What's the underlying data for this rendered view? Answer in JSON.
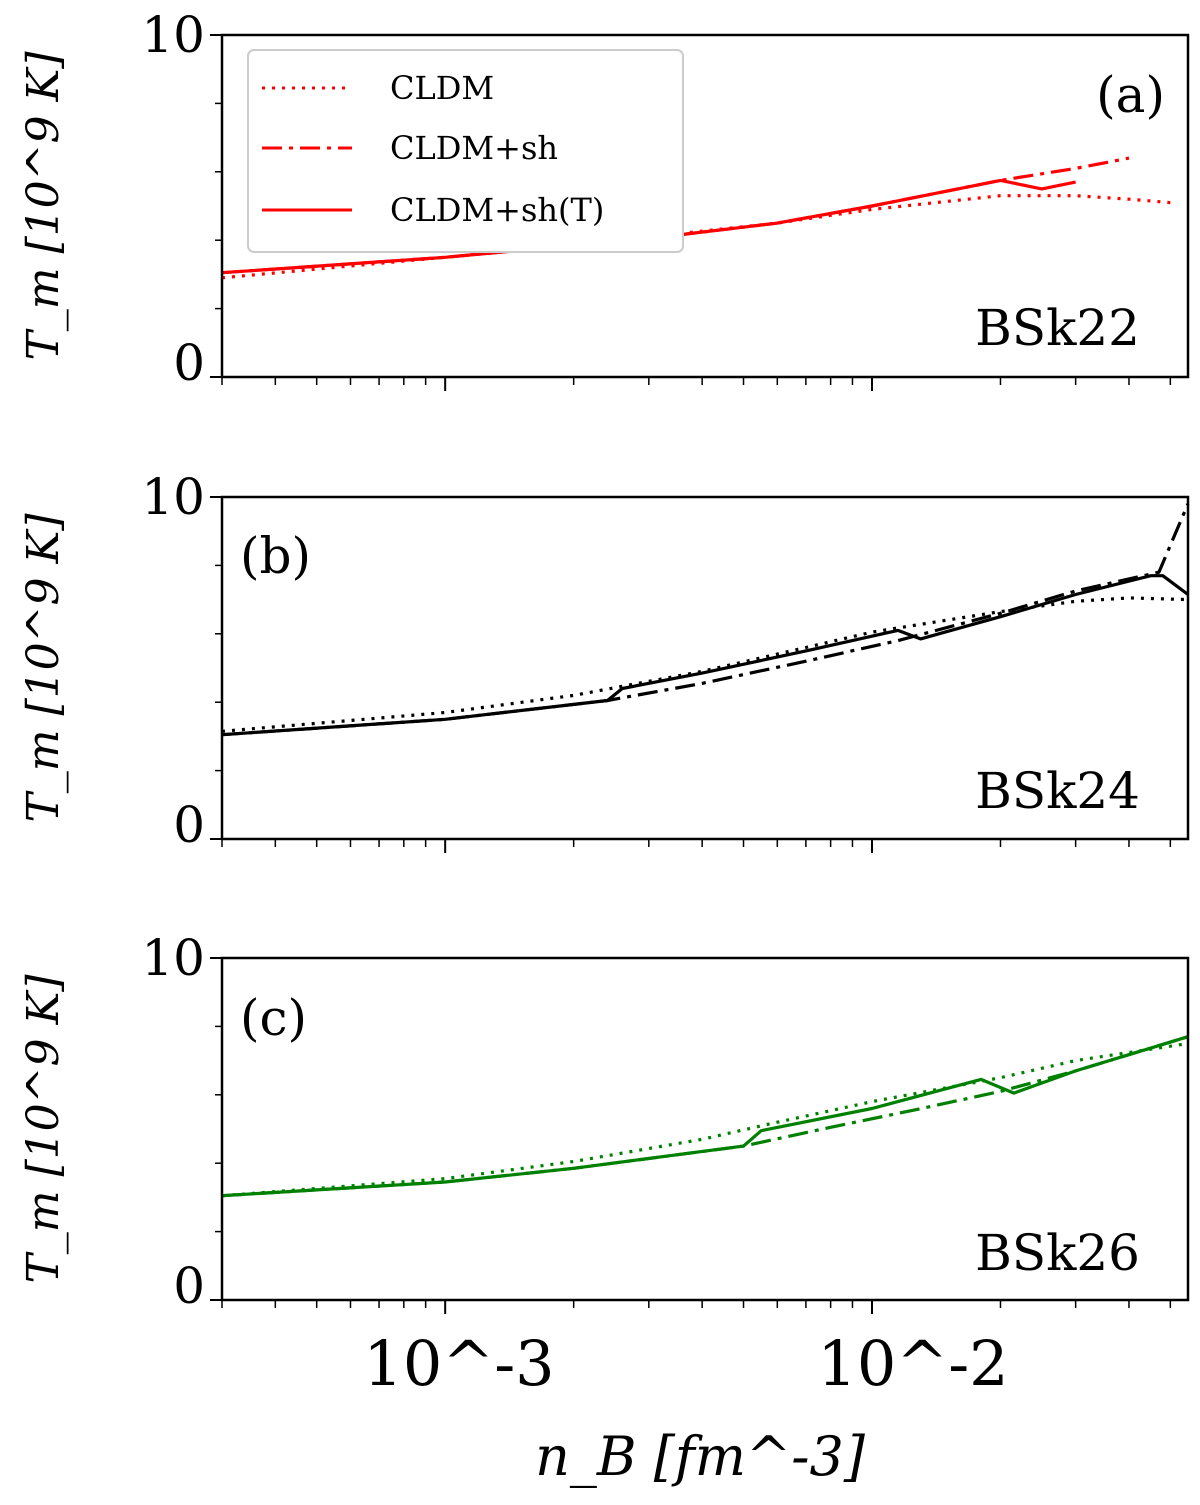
{
  "chart_data": [
    {
      "type": "line",
      "panel_label": "(a)",
      "model_label": "BSk22",
      "color": "#ff0000",
      "xscale": "log",
      "xlim": [
        0.0003,
        0.055
      ],
      "ylim": [
        0,
        10
      ],
      "ylabel": "T_m [10^9 K]",
      "yticks": [
        "0",
        "10"
      ],
      "legend": {
        "placement": "top-left",
        "entries": [
          {
            "label": "CLDM",
            "style": "dotted"
          },
          {
            "label": "CLDM+sh",
            "style": "dashdot"
          },
          {
            "label": "CLDM+sh(T)",
            "style": "solid"
          }
        ]
      },
      "series": [
        {
          "name": "CLDM",
          "style": "dotted",
          "x": [
            0.0003,
            0.001,
            0.003,
            0.006,
            0.01,
            0.02,
            0.03,
            0.04,
            0.05
          ],
          "y": [
            2.9,
            3.5,
            4.1,
            4.5,
            4.9,
            5.3,
            5.3,
            5.2,
            5.1
          ]
        },
        {
          "name": "CLDM+sh",
          "style": "dashdot",
          "x": [
            0.0003,
            0.001,
            0.003,
            0.006,
            0.01,
            0.02,
            0.03,
            0.04
          ],
          "y": [
            3.05,
            3.5,
            4.05,
            4.5,
            5.0,
            5.75,
            6.1,
            6.4
          ]
        },
        {
          "name": "CLDM+sh(T)",
          "style": "solid",
          "x": [
            0.0003,
            0.001,
            0.003,
            0.006,
            0.01,
            0.02,
            0.025,
            0.03
          ],
          "y": [
            3.05,
            3.5,
            4.05,
            4.5,
            5.0,
            5.75,
            5.5,
            5.7
          ]
        }
      ]
    },
    {
      "type": "line",
      "panel_label": "(b)",
      "model_label": "BSk24",
      "color": "#000000",
      "xscale": "log",
      "xlim": [
        0.0003,
        0.055
      ],
      "ylim": [
        0,
        10
      ],
      "ylabel": "T_m [10^9 K]",
      "yticks": [
        "0",
        "10"
      ],
      "series": [
        {
          "name": "CLDM",
          "style": "dotted",
          "x": [
            0.0003,
            0.001,
            0.002,
            0.004,
            0.007,
            0.01,
            0.02,
            0.03,
            0.04,
            0.055
          ],
          "y": [
            3.15,
            3.7,
            4.2,
            4.9,
            5.6,
            6.05,
            6.65,
            6.95,
            7.05,
            7.0
          ]
        },
        {
          "name": "CLDM+sh",
          "style": "dashdot",
          "x": [
            0.0003,
            0.001,
            0.0024,
            0.004,
            0.007,
            0.0115,
            0.02,
            0.03,
            0.047,
            0.055
          ],
          "y": [
            3.05,
            3.5,
            4.05,
            4.55,
            5.2,
            5.8,
            6.6,
            7.25,
            7.8,
            9.8
          ]
        },
        {
          "name": "CLDM+sh(T)",
          "style": "solid",
          "x": [
            0.0003,
            0.001,
            0.0024,
            0.0026,
            0.004,
            0.007,
            0.0115,
            0.013,
            0.02,
            0.03,
            0.045,
            0.048,
            0.055
          ],
          "y": [
            3.05,
            3.5,
            4.05,
            4.4,
            4.85,
            5.5,
            6.1,
            5.85,
            6.5,
            7.15,
            7.7,
            7.7,
            7.15
          ]
        }
      ]
    },
    {
      "type": "line",
      "panel_label": "(c)",
      "model_label": "BSk26",
      "color": "#008000",
      "xscale": "log",
      "xlim": [
        0.0003,
        0.055
      ],
      "ylim": [
        0,
        10
      ],
      "ylabel": "T_m [10^9 K]",
      "yticks": [
        "0",
        "10"
      ],
      "xlabel": "n_B [fm^-3]",
      "xticks": [
        "10^-3",
        "10^-2"
      ],
      "series": [
        {
          "name": "CLDM",
          "style": "dotted",
          "x": [
            0.0003,
            0.001,
            0.002,
            0.004,
            0.006,
            0.01,
            0.02,
            0.03,
            0.055
          ],
          "y": [
            3.05,
            3.55,
            4.05,
            4.7,
            5.2,
            5.8,
            6.5,
            7.0,
            7.5
          ]
        },
        {
          "name": "CLDM+sh",
          "style": "dashdot",
          "x": [
            0.0003,
            0.001,
            0.002,
            0.005,
            0.008,
            0.0125,
            0.02,
            0.03,
            0.055
          ],
          "y": [
            3.05,
            3.45,
            3.85,
            4.5,
            5.05,
            5.55,
            6.1,
            6.7,
            7.7
          ]
        },
        {
          "name": "CLDM+sh(T)",
          "style": "solid",
          "x": [
            0.0003,
            0.001,
            0.002,
            0.005,
            0.0055,
            0.01,
            0.018,
            0.0215,
            0.03,
            0.055
          ],
          "y": [
            3.05,
            3.45,
            3.85,
            4.5,
            4.95,
            5.6,
            6.45,
            6.05,
            6.7,
            7.7
          ]
        }
      ]
    }
  ]
}
